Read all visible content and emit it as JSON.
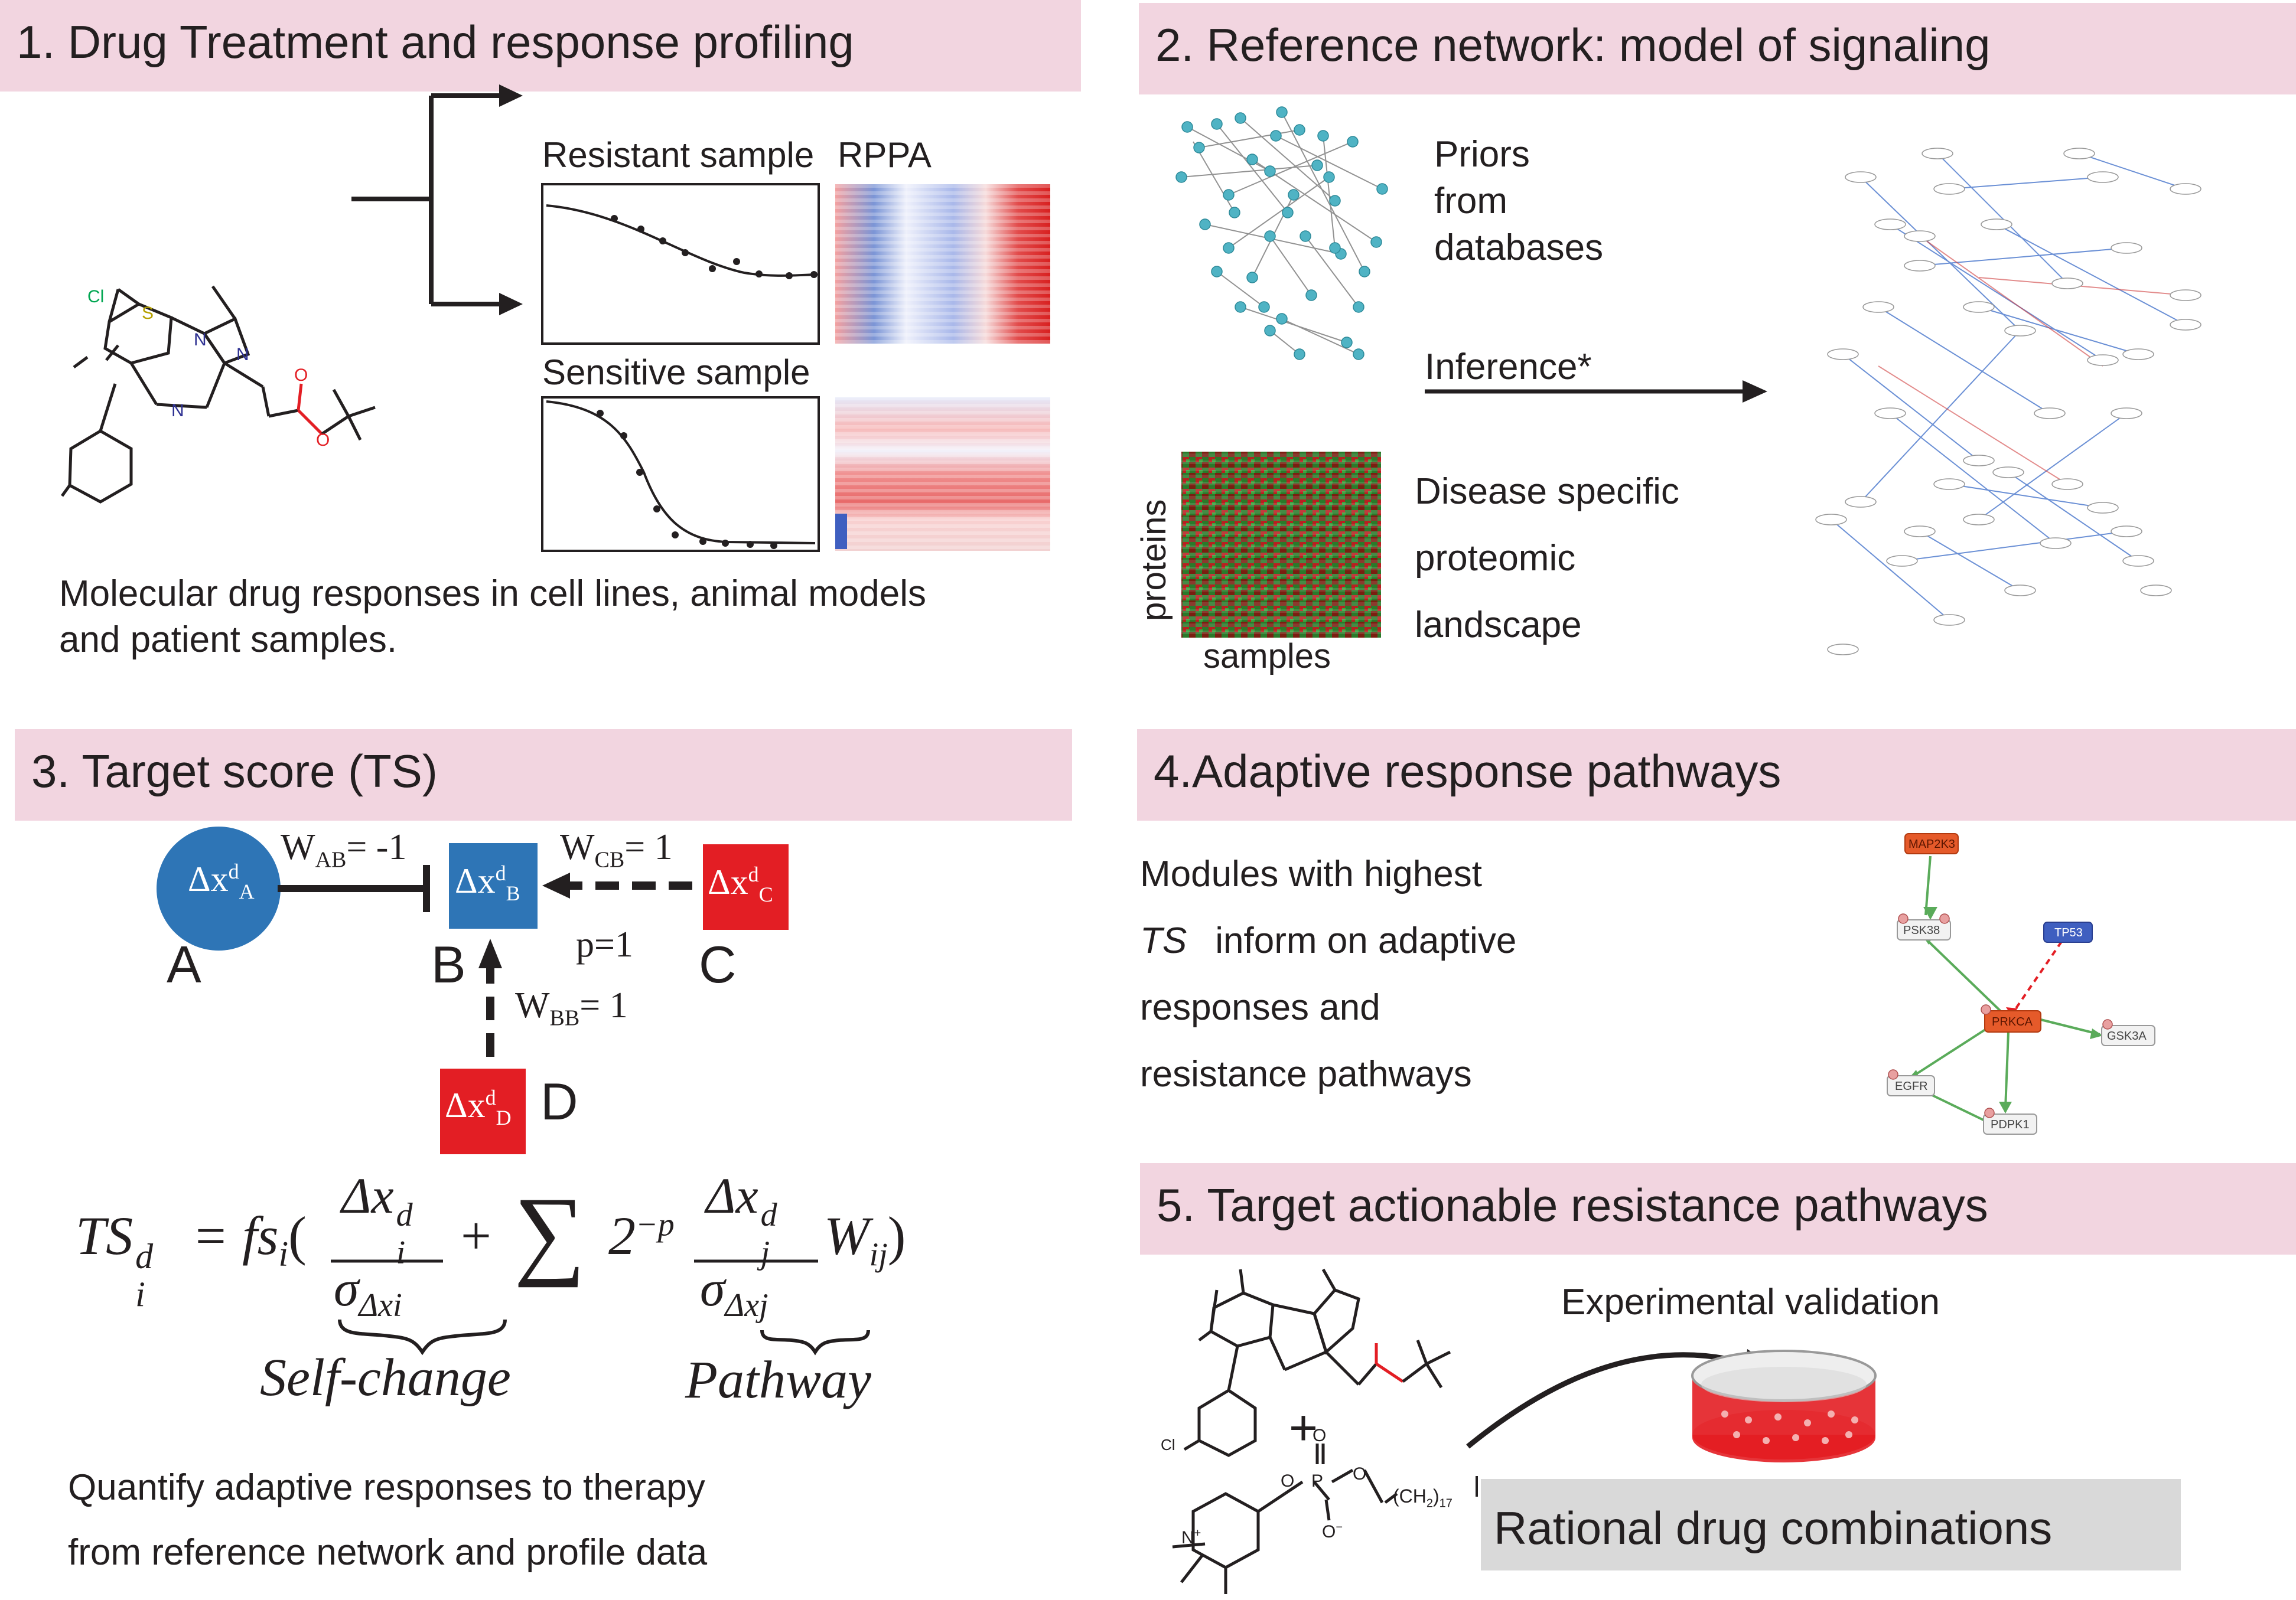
{
  "panel1": {
    "header": "1. Drug Treatment and response profiling",
    "resistant_label": "Resistant sample",
    "rppa_label": "RPPA",
    "sensitive_label": "Sensitive sample",
    "description_line1": "Molecular drug responses in cell lines, animal models",
    "description_line2": "and patient samples.",
    "molecule_atoms": {
      "cl": "Cl",
      "s": "S",
      "n1": "N",
      "n2": "N",
      "n3": "N",
      "o1": "O",
      "o2": "O"
    }
  },
  "panel2": {
    "header": "2. Reference network: model of signaling",
    "priors_line1": "Priors",
    "priors_line2": "from",
    "priors_line3": "databases",
    "inference_label": "Inference*",
    "heatmap_ylabel": "proteins",
    "heatmap_xlabel": "samples",
    "disease_line1": "Disease specific",
    "disease_line2": "proteomic",
    "disease_line3": "landscape"
  },
  "panel3": {
    "header": "3. Target score (TS)",
    "node_a": {
      "sym": "Δx",
      "sup": "d",
      "sub": "A",
      "letter": "A"
    },
    "node_b": {
      "sym": "Δx",
      "sup": "d",
      "sub": "B",
      "letter": "B"
    },
    "node_c": {
      "sym": "Δx",
      "sup": "d",
      "sub": "C",
      "letter": "C"
    },
    "node_d": {
      "sym": "Δx",
      "sup": "d",
      "sub": "D",
      "letter": "D"
    },
    "w_ab": {
      "w": "W",
      "sub": "AB",
      "val": "= -1"
    },
    "w_cb": {
      "w": "W",
      "sub": "CB",
      "val": "= 1"
    },
    "w_bb": {
      "w": "W",
      "sub": "BB",
      "val": "= 1"
    },
    "p_label": "p=1",
    "formula": {
      "lhs": "TS",
      "lhs_sup": "d",
      "lhs_sub": "i",
      "eq": "= fs",
      "fs_sub": "i",
      "open": "(",
      "num1": "Δx",
      "num1_sup": "d",
      "num1_sub": "i",
      "den1": "σ",
      "den1_sub": "Δxi",
      "plus": "+",
      "sum": "∑",
      "two": "2",
      "two_sup": "−p",
      "num2": "Δx",
      "num2_sup": "d",
      "num2_sub": "j",
      "den2": "σ",
      "den2_sub": "Δxj",
      "w": "W",
      "w_sub": "ij",
      "close": ")"
    },
    "self_change": "Self-change",
    "pathway": "Pathway",
    "description_line1": "Quantify adaptive responses to therapy",
    "description_line2": "from reference network and profile data"
  },
  "panel4": {
    "header": "4.Adaptive response pathways",
    "line1": "Modules with highest",
    "line2_ts": "TS",
    "line2_rest": "inform on adaptive",
    "line3": "responses and",
    "line4": "resistance pathways",
    "nodes": {
      "map2k3": "MAP2K3",
      "psk38": "PSK38",
      "tp53": "TP53",
      "prkca": "PRKCA",
      "gsk3a": "GSK3A",
      "egfr": "EGFR",
      "pdpk1": "PDPK1"
    }
  },
  "panel5": {
    "header": "5. Target actionable resistance  pathways",
    "validation_label": "Experimental validation",
    "plus": "+",
    "combinations_label": "Rational drug combinations",
    "chain_label": "(CH",
    "chain_sub1": "2",
    "chain_close": ")",
    "chain_sub2": "17",
    "atoms": {
      "cl": "Cl",
      "n_plus": "N",
      "plus_sign": "+",
      "p": "P",
      "o_top": "O",
      "o_left": "O",
      "o_right": "O",
      "o_minus": "O",
      "minus": "−"
    }
  },
  "colors": {
    "header_bg": "#f2d5e0",
    "node_blue": "#2e75b6",
    "node_red": "#e31e24",
    "combo_bg": "#d9d9d9",
    "net_node": "#4fb3c4"
  }
}
